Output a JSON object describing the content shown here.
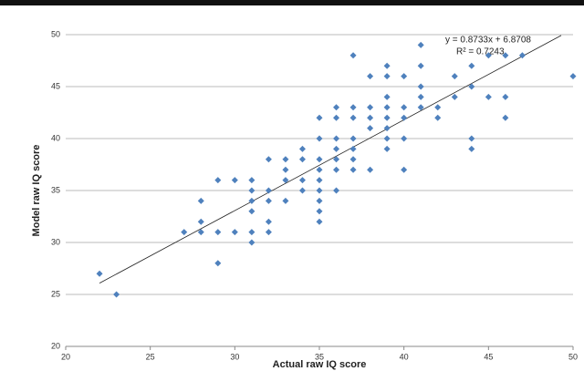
{
  "chart_data": {
    "type": "scatter",
    "x_label": "Actual raw IQ score",
    "y_label": "Model raw IQ score",
    "xlim": [
      20,
      50
    ],
    "ylim": [
      20,
      50
    ],
    "xticks": [
      20,
      25,
      30,
      35,
      40,
      45,
      50
    ],
    "yticks": [
      20,
      25,
      30,
      35,
      40,
      45,
      50
    ],
    "grid": true,
    "series": [
      {
        "color": "#4f81bd",
        "x": [
          22,
          23,
          27,
          28,
          28,
          28,
          29,
          29,
          29,
          30,
          30,
          31,
          31,
          31,
          31,
          31,
          31,
          32,
          32,
          32,
          32,
          32,
          33,
          33,
          33,
          33,
          34,
          34,
          34,
          34,
          35,
          35,
          35,
          35,
          35,
          35,
          35,
          35,
          35,
          36,
          36,
          36,
          36,
          36,
          36,
          36,
          37,
          37,
          37,
          37,
          37,
          37,
          37,
          38,
          38,
          38,
          38,
          38,
          39,
          39,
          39,
          39,
          39,
          39,
          39,
          39,
          40,
          40,
          40,
          40,
          40,
          41,
          41,
          41,
          41,
          41,
          42,
          42,
          43,
          43,
          44,
          44,
          44,
          44,
          45,
          45,
          46,
          46,
          46,
          47,
          50
        ],
        "values": [
          27,
          25,
          31,
          34,
          32,
          31,
          36,
          31,
          28,
          36,
          31,
          36,
          35,
          34,
          33,
          31,
          30,
          38,
          35,
          34,
          32,
          31,
          38,
          37,
          36,
          34,
          38,
          39,
          36,
          35,
          42,
          40,
          38,
          37,
          36,
          35,
          34,
          33,
          32,
          43,
          42,
          40,
          39,
          38,
          37,
          35,
          48,
          43,
          42,
          40,
          39,
          38,
          37,
          46,
          43,
          42,
          41,
          37,
          47,
          46,
          44,
          43,
          42,
          41,
          40,
          39,
          46,
          43,
          42,
          40,
          37,
          49,
          47,
          45,
          44,
          43,
          43,
          42,
          46,
          44,
          47,
          45,
          40,
          39,
          48,
          44,
          48,
          44,
          42,
          48,
          46
        ]
      }
    ],
    "trendline": {
      "label": "y = 0.8733x + 6.8708",
      "r2_label": "R² = 0.7243",
      "slope": 0.8733,
      "intercept": 6.8708,
      "x_range": [
        22,
        49.3
      ]
    }
  }
}
